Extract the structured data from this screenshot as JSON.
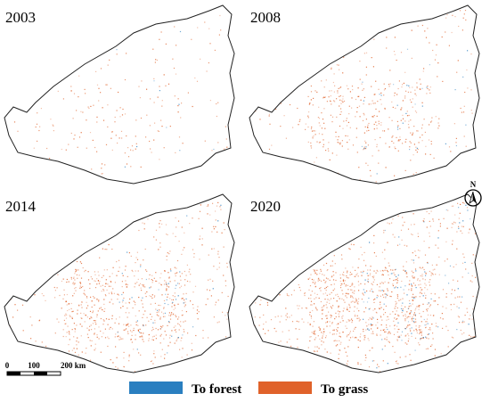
{
  "panels": [
    {
      "year": "2003"
    },
    {
      "year": "2008"
    },
    {
      "year": "2014"
    },
    {
      "year": "2020"
    }
  ],
  "legend": [
    {
      "label": "To forest",
      "color": "#2a7fc0"
    },
    {
      "label": "To grass",
      "color": "#e0622a"
    }
  ],
  "scale_bar": {
    "labels": [
      "0",
      "100",
      "200 km"
    ]
  },
  "north_arrow": {
    "label": "N"
  }
}
